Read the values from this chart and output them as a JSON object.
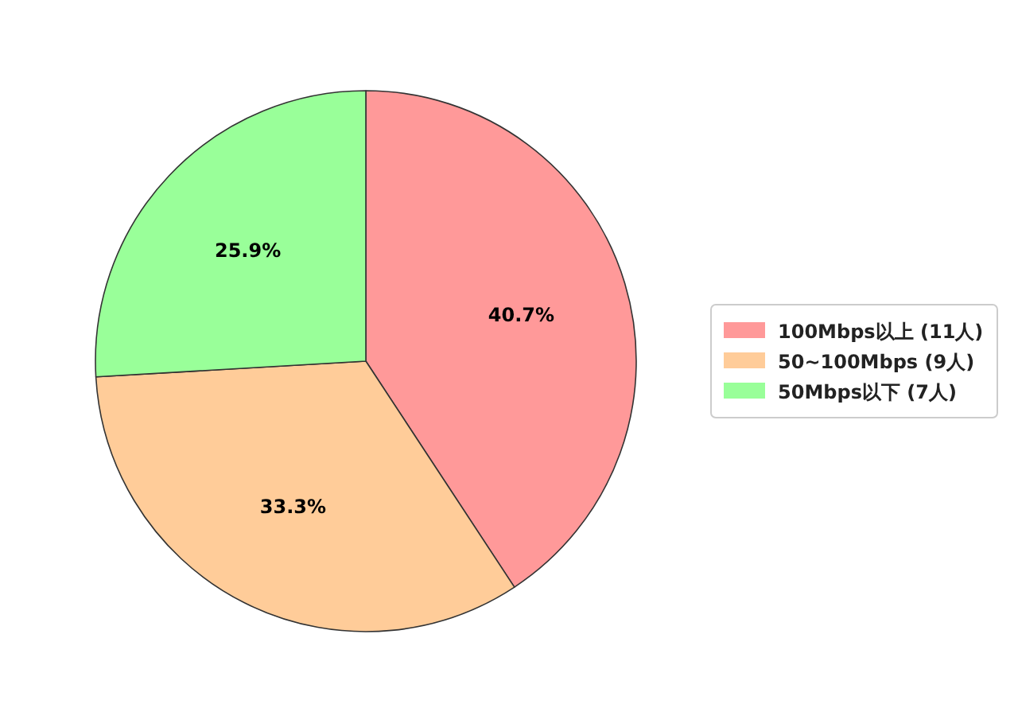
{
  "chart_data": {
    "type": "pie",
    "categories": [
      "100Mbps以上 (11人)",
      "50~100Mbps (9人)",
      "50Mbps以下 (7人)"
    ],
    "values": [
      40.7,
      33.3,
      25.9
    ],
    "colors": [
      "#ff9999",
      "#ffcc99",
      "#99ff99"
    ],
    "value_labels": [
      "40.7%",
      "33.3%",
      "25.9%"
    ],
    "legend": "right"
  }
}
